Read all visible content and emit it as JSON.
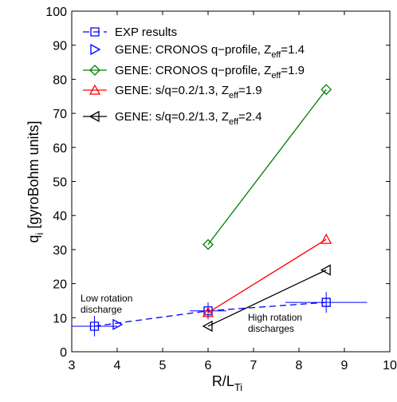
{
  "chart_data": {
    "type": "line",
    "xlabel": "R/L",
    "xlabel_sub": "Ti",
    "ylabel": "q",
    "ylabel_sub": "i",
    "ylabel_rest": " [gyroBohm units]",
    "xlim": [
      3,
      10
    ],
    "xticks": [
      3,
      4,
      5,
      6,
      7,
      8,
      9,
      10
    ],
    "ylim": [
      0,
      100
    ],
    "yticks": [
      0,
      10,
      20,
      30,
      40,
      50,
      60,
      70,
      80,
      90,
      100
    ],
    "series": [
      {
        "name": "EXP results",
        "color": "#0000ff",
        "marker": "square",
        "dashed": true,
        "x": [
          3.5,
          6,
          8.6
        ],
        "values": [
          7.5,
          12,
          14.5
        ],
        "xerr": [
          0.5,
          0.4,
          0.9
        ],
        "yerr": [
          3,
          2.5,
          3
        ]
      },
      {
        "name": "GENE: CRONOS q−profile, Z",
        "name_sub": "eff",
        "name_end": "=1.4",
        "color": "#0000ff",
        "marker": "triangle-right",
        "noline": true,
        "x": [
          4
        ],
        "values": [
          8
        ]
      },
      {
        "name": "GENE: CRONOS q−profile, Z",
        "name_sub": "eff",
        "name_end": "=1.9",
        "color": "#008000",
        "marker": "diamond",
        "x": [
          6,
          8.6
        ],
        "values": [
          31.5,
          77
        ]
      },
      {
        "name": "GENE: s/q=0.2/1.3, Z",
        "name_sub": "eff",
        "name_end": "=1.9",
        "color": "#ff0000",
        "marker": "triangle-up",
        "x": [
          6,
          8.6
        ],
        "values": [
          11.5,
          33
        ]
      },
      {
        "name": "GENE: s/q=0.2/1.3, Z",
        "name_sub": "eff",
        "name_end": "=2.4",
        "color": "#000000",
        "marker": "triangle-left",
        "x": [
          6,
          8.6
        ],
        "values": [
          7.5,
          24
        ]
      }
    ],
    "annotations": [
      {
        "lines": [
          "Low rotation",
          "discharge"
        ],
        "color": "#0000ff"
      },
      {
        "lines": [
          "High rotation",
          "discharges"
        ],
        "color": "#0000ff"
      }
    ]
  }
}
